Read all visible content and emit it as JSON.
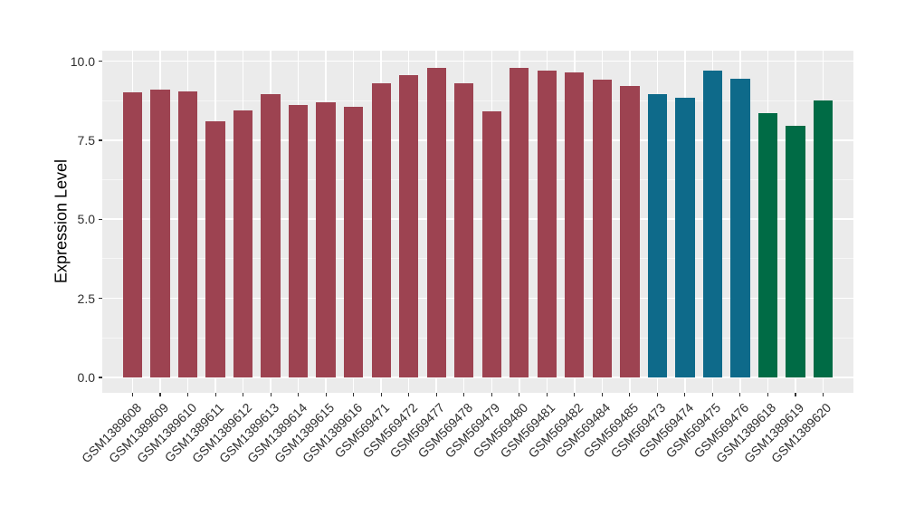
{
  "figure": {
    "background": "#ffffff",
    "panel_background": "#ebebeb",
    "gridline_color": "#ffffff",
    "axis_text_color": "#2e2e2e",
    "tick_mark_color": "#333333"
  },
  "chart_data": {
    "type": "bar",
    "title": "",
    "xlabel": "",
    "ylabel": "Expression Level",
    "ylim": [
      0,
      10.33
    ],
    "grid": true,
    "legend_position": "none",
    "y_major_ticks": [
      0,
      2.5,
      5,
      7.5,
      10
    ],
    "y_major_tick_labels": [
      "0.0",
      "2.5",
      "5.0",
      "7.5",
      "10.0"
    ],
    "y_minor_ticks": [
      1.25,
      3.75,
      6.25,
      8.75
    ],
    "categories": [
      "GSM1389608",
      "GSM1389609",
      "GSM1389610",
      "GSM1389611",
      "GSM1389612",
      "GSM1389613",
      "GSM1389614",
      "GSM1389615",
      "GSM1389616",
      "GSM569471",
      "GSM569472",
      "GSM569477",
      "GSM569478",
      "GSM569479",
      "GSM569480",
      "GSM569481",
      "GSM569482",
      "GSM569484",
      "GSM569485",
      "GSM569473",
      "GSM569474",
      "GSM569475",
      "GSM569476",
      "GSM1389618",
      "GSM1389619",
      "GSM1389620"
    ],
    "values": [
      9.0,
      9.1,
      9.05,
      8.1,
      8.45,
      8.95,
      8.6,
      8.7,
      8.55,
      9.3,
      9.55,
      9.8,
      9.3,
      8.4,
      9.8,
      9.7,
      9.65,
      9.4,
      9.2,
      8.95,
      8.85,
      9.7,
      9.45,
      8.35,
      7.95,
      8.75
    ],
    "palette": [
      "#9d4351",
      "#0e6a8a",
      "#006b45"
    ],
    "bar_colors": [
      "#9d4351",
      "#9d4351",
      "#9d4351",
      "#9d4351",
      "#9d4351",
      "#9d4351",
      "#9d4351",
      "#9d4351",
      "#9d4351",
      "#9d4351",
      "#9d4351",
      "#9d4351",
      "#9d4351",
      "#9d4351",
      "#9d4351",
      "#9d4351",
      "#9d4351",
      "#9d4351",
      "#9d4351",
      "#0e6a8a",
      "#0e6a8a",
      "#0e6a8a",
      "#0e6a8a",
      "#006b45",
      "#006b45",
      "#006b45"
    ]
  }
}
